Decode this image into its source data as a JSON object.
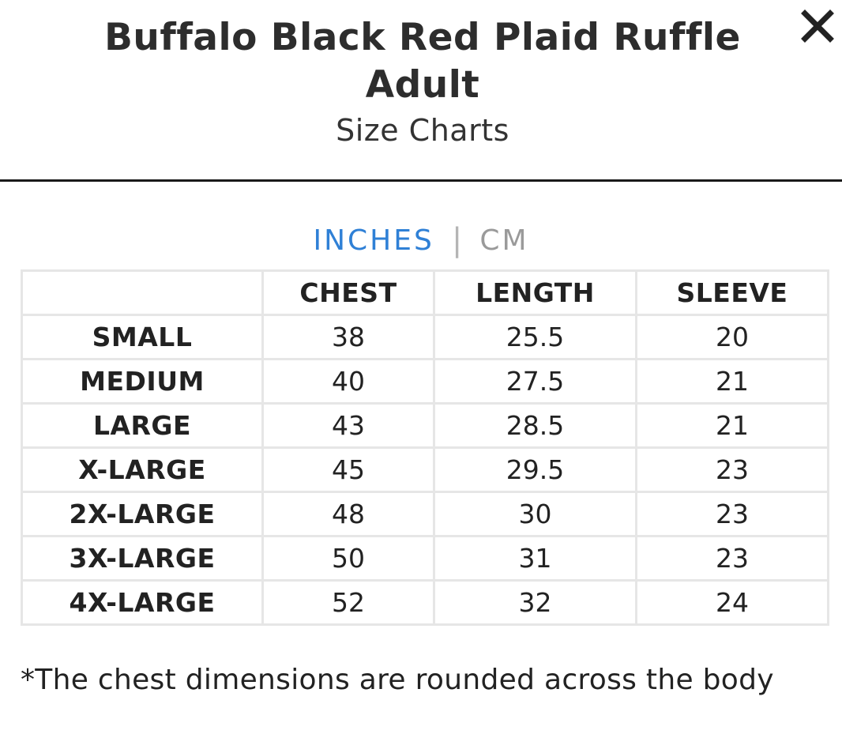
{
  "header": {
    "title": "Buffalo Black Red Plaid Ruffle Adult",
    "subtitle": "Size Charts",
    "close_icon": "close-icon"
  },
  "units": {
    "active": "INCHES",
    "separator": "|",
    "inactive": "CM",
    "active_color": "#2f80d6"
  },
  "table": {
    "columns": [
      "",
      "CHEST",
      "LENGTH",
      "SLEEVE"
    ],
    "rows": [
      {
        "size": "SMALL",
        "chest": "38",
        "length": "25.5",
        "sleeve": "20"
      },
      {
        "size": "MEDIUM",
        "chest": "40",
        "length": "27.5",
        "sleeve": "21"
      },
      {
        "size": "LARGE",
        "chest": "43",
        "length": "28.5",
        "sleeve": "21"
      },
      {
        "size": "X-LARGE",
        "chest": "45",
        "length": "29.5",
        "sleeve": "23"
      },
      {
        "size": "2X-LARGE",
        "chest": "48",
        "length": "30",
        "sleeve": "23"
      },
      {
        "size": "3X-LARGE",
        "chest": "50",
        "length": "31",
        "sleeve": "23"
      },
      {
        "size": "4X-LARGE",
        "chest": "52",
        "length": "32",
        "sleeve": "24"
      }
    ]
  },
  "note": "*The chest dimensions are rounded across the body"
}
